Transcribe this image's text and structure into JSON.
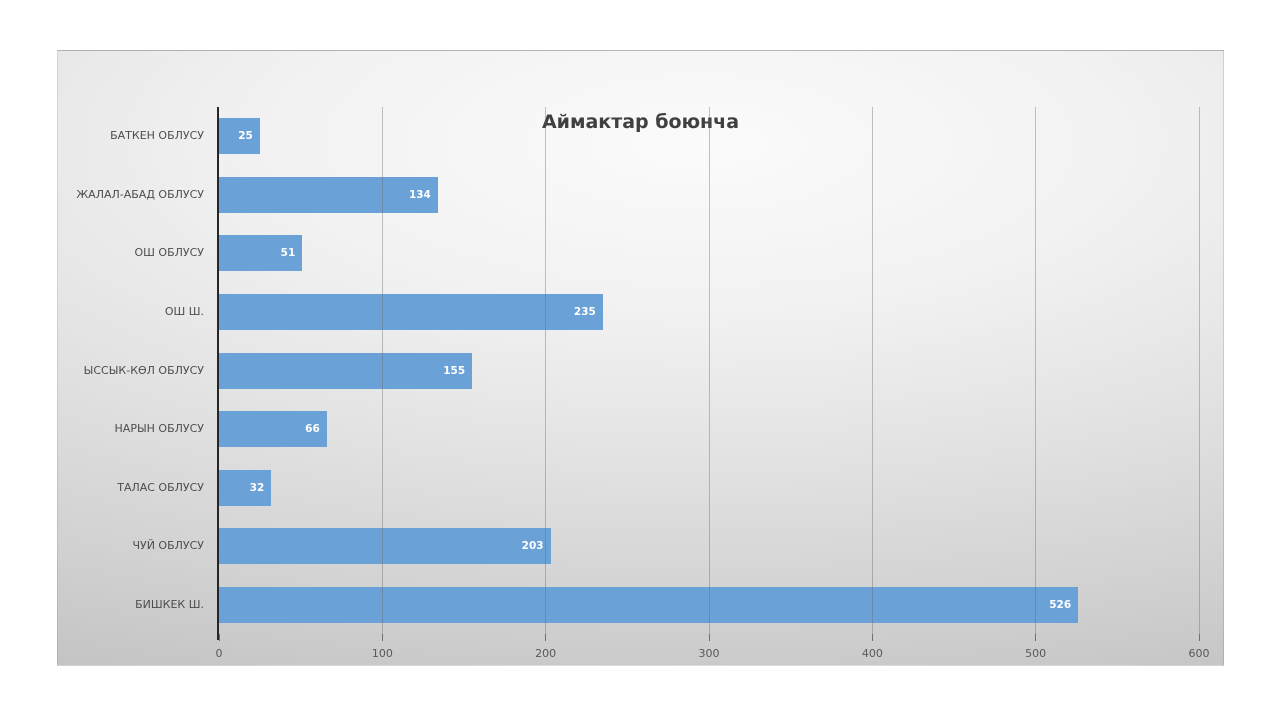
{
  "chart_data": {
    "type": "bar",
    "orientation": "horizontal",
    "title": "Аймактар боюнча",
    "categories": [
      "БАТКЕН ОБЛУСУ",
      "ЖАЛАЛ-АБАД ОБЛУСУ",
      "ОШ ОБЛУСУ",
      "ОШ Ш.",
      "ЫССЫК-КӨЛ ОБЛУСУ",
      "НАРЫН ОБЛУСУ",
      "ТАЛАС ОБЛУСУ",
      "ЧУЙ ОБЛУСУ",
      "БИШКЕК Ш."
    ],
    "values": [
      25,
      134,
      51,
      235,
      155,
      66,
      32,
      203,
      526
    ],
    "xlabel": "",
    "ylabel": "",
    "xlim": [
      0,
      600
    ],
    "x_ticks": [
      0,
      100,
      200,
      300,
      400,
      500,
      600
    ],
    "grid": "vertical",
    "legend": "none",
    "data_labels": "inside-end",
    "colors": {
      "bar": "#6aa1d6",
      "value_label": "#ffffff",
      "title": "#404040",
      "axis_labels": "#595959",
      "category_labels": "#4d4d4d",
      "axis_line": "#262626",
      "gridline": "rgba(105,105,105,0.40)"
    }
  }
}
